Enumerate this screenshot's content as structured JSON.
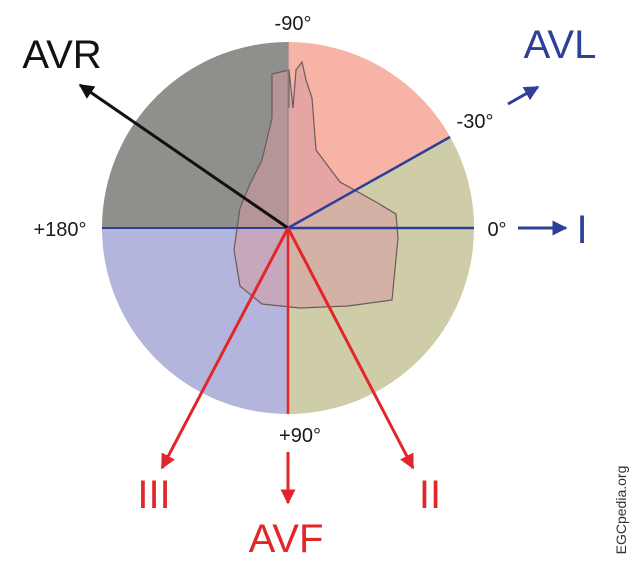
{
  "colors": {
    "quadrant_upper_left": "#8f8f8c",
    "quadrant_upper_right": "#f6b3a6",
    "quadrant_lower_right": "#cfcda8",
    "quadrant_lower_left": "#b4b5dd",
    "heart_fill": "#d79aa0",
    "lead_black": "#111111",
    "lead_blue": "#2e3f9a",
    "lead_red": "#e2262a"
  },
  "angles": {
    "top": "-90°",
    "upper_right": "-30°",
    "right": "0°",
    "left": "+180°",
    "bottom": "+90°"
  },
  "leads": {
    "avr": "AVR",
    "avl": "AVL",
    "lead_i": "I",
    "lead_ii": "II",
    "lead_iii": "III",
    "avf": "AVF"
  },
  "watermark": "EGCpedia.org"
}
